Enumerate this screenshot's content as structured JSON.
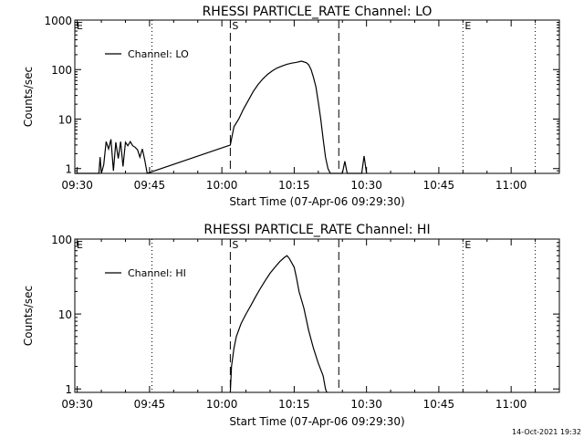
{
  "footer_stamp": "14-Oct-2021 19:32",
  "chart_data": [
    {
      "type": "line",
      "title": "RHESSI PARTICLE_RATE Channel: LO",
      "xlabel": "Start Time (07-Apr-06 09:29:30)",
      "ylabel": "Counts/sec",
      "yscale": "log",
      "xlim": [
        "09:29:30",
        "11:10:00"
      ],
      "ylim": [
        0.8,
        1000
      ],
      "x_ticks": [
        "09:30",
        "09:45",
        "10:00",
        "10:15",
        "10:30",
        "10:45",
        "11:00"
      ],
      "y_ticks": [
        "1",
        "10",
        "100",
        "1000"
      ],
      "legend": {
        "position": "top-left",
        "entries": [
          "Channel: LO"
        ]
      },
      "markers": [
        {
          "time": "10:01:45",
          "style": "dashed",
          "label": "S"
        },
        {
          "time": "10:24:15",
          "style": "dashed",
          "label": ""
        },
        {
          "time": "09:45:30",
          "style": "dotted",
          "label": ""
        },
        {
          "time": "10:50:00",
          "style": "dotted",
          "label": "E"
        },
        {
          "time": "11:05:00",
          "style": "dotted",
          "label": ""
        },
        {
          "time": "09:29:30",
          "style": "none",
          "label": "E"
        }
      ],
      "series": [
        {
          "name": "Channel: LO",
          "x": [
            "09:29:30",
            "09:34:30",
            "09:34:45",
            "09:35:00",
            "09:35:30",
            "09:36:00",
            "09:36:30",
            "09:37:00",
            "09:37:30",
            "09:38:00",
            "09:38:30",
            "09:39:00",
            "09:39:30",
            "09:40:00",
            "09:40:30",
            "09:41:00",
            "09:41:30",
            "09:42:00",
            "09:42:30",
            "09:43:00",
            "09:43:30",
            "09:44:00",
            "09:44:30",
            "10:01:45",
            "10:02:30",
            "10:03:30",
            "10:04:30",
            "10:05:30",
            "10:06:30",
            "10:07:30",
            "10:08:30",
            "10:09:30",
            "10:10:30",
            "10:11:30",
            "10:12:30",
            "10:13:30",
            "10:14:30",
            "10:15:30",
            "10:16:30",
            "10:17:30",
            "10:18:00",
            "10:18:30",
            "10:19:00",
            "10:19:30",
            "10:20:00",
            "10:20:30",
            "10:21:00",
            "10:21:30",
            "10:22:00",
            "10:22:30",
            "10:23:00",
            "10:23:30",
            "10:25:00",
            "10:25:30",
            "10:26:00",
            "10:29:00",
            "10:29:30",
            "10:30:00"
          ],
          "y": [
            0.8,
            0.8,
            1.7,
            0.8,
            1.2,
            3.5,
            2.5,
            3.9,
            0.9,
            3.4,
            1.6,
            3.5,
            1.1,
            3.4,
            2.9,
            3.5,
            2.9,
            2.7,
            2.4,
            1.7,
            2.5,
            1.5,
            0.8,
            3,
            7,
            10,
            16,
            24,
            36,
            50,
            65,
            80,
            95,
            108,
            118,
            128,
            135,
            140,
            148,
            138,
            125,
            100,
            70,
            45,
            22,
            10,
            4,
            1.7,
            1,
            0.8,
            0.8,
            0.8,
            0.8,
            1.4,
            0.8,
            0.8,
            1.8,
            0.8
          ]
        }
      ]
    },
    {
      "type": "line",
      "title": "RHESSI PARTICLE_RATE Channel: HI",
      "xlabel": "Start Time (07-Apr-06 09:29:30)",
      "ylabel": "Counts/sec",
      "yscale": "log",
      "xlim": [
        "09:29:30",
        "11:10:00"
      ],
      "ylim": [
        0.9,
        100
      ],
      "x_ticks": [
        "09:30",
        "09:45",
        "10:00",
        "10:15",
        "10:30",
        "10:45",
        "11:00"
      ],
      "y_ticks": [
        "1",
        "10",
        "100"
      ],
      "legend": {
        "position": "top-left",
        "entries": [
          "Channel: HI"
        ]
      },
      "markers": [
        {
          "time": "10:01:45",
          "style": "dashed",
          "label": "S"
        },
        {
          "time": "10:24:15",
          "style": "dashed",
          "label": ""
        },
        {
          "time": "09:45:30",
          "style": "dotted",
          "label": ""
        },
        {
          "time": "10:50:00",
          "style": "dotted",
          "label": "E"
        },
        {
          "time": "11:05:00",
          "style": "dotted",
          "label": ""
        },
        {
          "time": "09:29:30",
          "style": "none",
          "label": "E"
        }
      ],
      "series": [
        {
          "name": "Channel: HI",
          "x": [
            "10:01:45",
            "10:02:00",
            "10:02:30",
            "10:03:00",
            "10:04:00",
            "10:05:00",
            "10:06:00",
            "10:07:00",
            "10:08:00",
            "10:09:00",
            "10:10:00",
            "10:11:00",
            "10:12:00",
            "10:13:00",
            "10:13:30",
            "10:14:00",
            "10:14:30",
            "10:15:00",
            "10:15:30",
            "10:16:00",
            "10:17:00",
            "10:18:00",
            "10:19:00",
            "10:20:00",
            "10:21:00",
            "10:21:30",
            "10:21:45"
          ],
          "y": [
            0.9,
            2,
            3.5,
            5,
            7.5,
            10,
            13,
            17,
            22,
            28,
            35,
            42,
            50,
            57,
            60,
            55,
            48,
            42,
            30,
            20,
            12,
            6,
            3.5,
            2.2,
            1.5,
            1,
            0.9
          ]
        }
      ]
    }
  ]
}
